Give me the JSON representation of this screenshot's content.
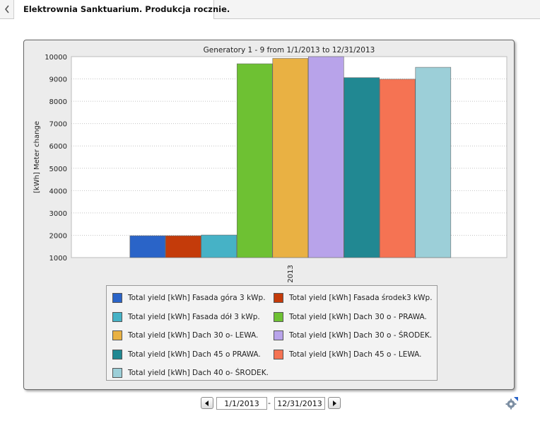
{
  "tab": {
    "title": "Elektrownia Sanktuarium. Produkcja rocznie."
  },
  "date_range": {
    "from": "1/1/2013",
    "separator": "-",
    "to": "12/31/2013"
  },
  "icons": {
    "back": "chevron-left-icon",
    "prev": "triangle-left-icon",
    "next": "triangle-right-icon",
    "settings": "gear-icon"
  },
  "chart_data": {
    "type": "bar",
    "title": "Generatory 1 - 9 from 1/1/2013 to 12/31/2013",
    "xlabel": "",
    "ylabel": "[kWh] Meter change",
    "categories": [
      "2013"
    ],
    "ylim": [
      1000,
      10000
    ],
    "yticks": [
      1000,
      2000,
      3000,
      4000,
      5000,
      6000,
      7000,
      8000,
      9000,
      10000
    ],
    "grid": true,
    "legend_position": "bottom",
    "series": [
      {
        "name": "Total yield [kWh] Fasada góra 3 kWp.",
        "color": "#2a64c8",
        "values": [
          1980
        ]
      },
      {
        "name": "Total yield [kWh] Fasada środek3 kWp.",
        "color": "#c43b0a",
        "values": [
          1980
        ]
      },
      {
        "name": "Total yield [kWh] Fasada dół 3 kWp.",
        "color": "#46b2c6",
        "values": [
          2010
        ]
      },
      {
        "name": "Total yield [kWh] Dach 30 o - PRAWA.",
        "color": "#6ec133",
        "values": [
          9680
        ]
      },
      {
        "name": "Total yield [kWh] Dach 30 o- LEWA.",
        "color": "#e9b143",
        "values": [
          9920
        ]
      },
      {
        "name": "Total yield [kWh] Dach 30 o - ŚRODEK.",
        "color": "#b8a3ea",
        "values": [
          10000
        ]
      },
      {
        "name": "Total yield [kWh] Dach 45 o PRAWA.",
        "color": "#218892",
        "values": [
          9060
        ]
      },
      {
        "name": "Total yield [kWh] Dach 45 o - LEWA.",
        "color": "#f57353",
        "values": [
          8990
        ]
      },
      {
        "name": "Total yield [kWh] Dach 40 o- ŚRODEK.",
        "color": "#9ccfd8",
        "values": [
          9520
        ]
      }
    ]
  }
}
